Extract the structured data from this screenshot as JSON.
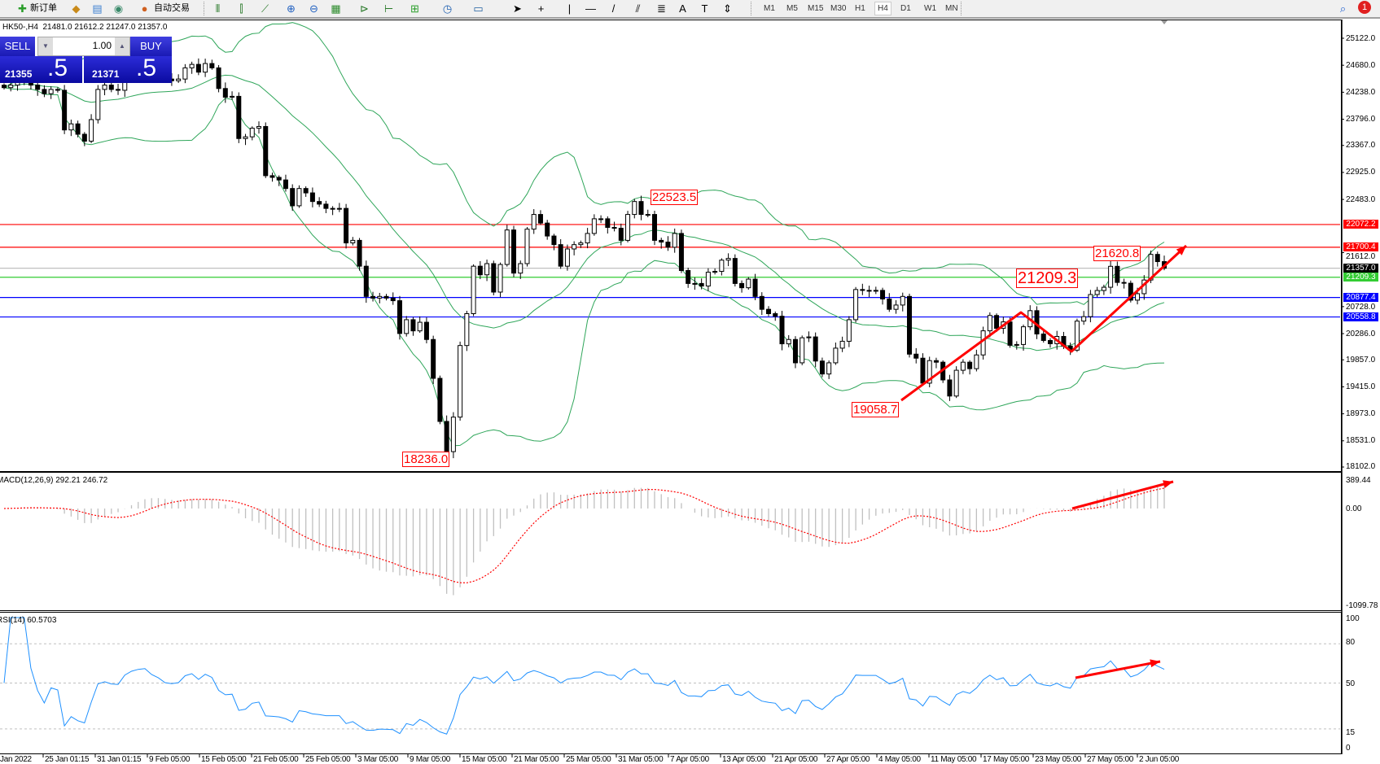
{
  "toolbar": {
    "new_order_label": "新订单",
    "auto_trading_label": "自动交易",
    "timeframes": [
      "M1",
      "M5",
      "M15",
      "M30",
      "H1",
      "H4",
      "D1",
      "W1",
      "MN"
    ],
    "active_timeframe": "H4",
    "notification_count": "1",
    "icons": [
      "new-order-icon",
      "market-watch-icon",
      "navigator-icon",
      "signals-icon",
      "auto-trading-icon",
      "bar-chart-icon",
      "candlestick-icon",
      "line-chart-icon",
      "zoom-in-icon",
      "zoom-out-icon",
      "tile-windows-icon",
      "auto-scroll-icon",
      "chart-shift-icon",
      "indicators-icon",
      "periods-icon",
      "templates-icon",
      "cursor-icon",
      "crosshair-icon",
      "vertical-line-icon",
      "horizontal-line-icon",
      "trendline-icon",
      "equidistant-channel-icon",
      "fibonacci-icon",
      "text-icon",
      "text-label-icon",
      "arrows-icon",
      "search-icon",
      "notification-icon"
    ]
  },
  "chart": {
    "symbol_info": "HK50-,H4",
    "ohlc": "21481.0 21612.2 21247.0 21357.0",
    "colors": {
      "bands": "#2fa65a",
      "macd_signal": "#ff0000",
      "macd_hist": "#c0c0c0",
      "rsi": "#1e90ff",
      "arrow": "#ff0000"
    }
  },
  "trade_panel": {
    "sell_label": "SELL",
    "buy_label": "BUY",
    "lot_size": "1.00",
    "sell_price_main": "21355",
    "sell_price_frac": ".5",
    "buy_price_main": "21371",
    "buy_price_frac": ".5"
  },
  "price_axis": [
    "25122.0",
    "24680.0",
    "24238.0",
    "23796.0",
    "23367.0",
    "22925.0",
    "22483.0",
    "21612.0",
    "20728.0",
    "20286.0",
    "19857.0",
    "19415.0",
    "18973.0",
    "18531.0",
    "18102.0"
  ],
  "price_lines": [
    {
      "value": "22072.2",
      "color": "#ff0000"
    },
    {
      "value": "21700.4",
      "color": "#ff0000"
    },
    {
      "value": "21357.0",
      "color": "#000000"
    },
    {
      "value": "21209.3",
      "color": "#33cc33"
    },
    {
      "value": "20877.4",
      "color": "#0000ff"
    },
    {
      "value": "20558.8",
      "color": "#0000ff"
    }
  ],
  "callouts": [
    "22523.5",
    "18236.0",
    "19058.7",
    "21209.3",
    "21620.8"
  ],
  "macd": {
    "label": "MACD(12,26,9) 292.21 246.72",
    "axis": [
      "389.44",
      "0.00",
      "-1099.78"
    ]
  },
  "rsi": {
    "label": "RSI(14) 60.5703",
    "axis": [
      "100",
      "80",
      "50",
      "15",
      "0"
    ]
  },
  "time_axis": [
    "Jan 2022",
    "25 Jan 01:15",
    "31 Jan 01:15",
    "9 Feb 05:00",
    "15 Feb 05:00",
    "21 Feb 05:00",
    "25 Feb 05:00",
    "3 Mar 05:00",
    "9 Mar 05:00",
    "15 Mar 05:00",
    "21 Mar 05:00",
    "25 Mar 05:00",
    "31 Mar 05:00",
    "7 Apr 05:00",
    "13 Apr 05:00",
    "21 Apr 05:00",
    "27 Apr 05:00",
    "4 May 05:00",
    "11 May 05:00",
    "17 May 05:00",
    "23 May 05:00",
    "27 May 05:00",
    "2 Jun 05:00"
  ],
  "chart_data": {
    "type": "candlestick",
    "ylim": [
      18102,
      25122
    ],
    "closes": [
      24313,
      24355,
      24397,
      24426,
      24355,
      24284,
      24214,
      24284,
      24270,
      23621,
      23720,
      23550,
      23437,
      23790,
      24284,
      24355,
      24284,
      24270,
      24567,
      24708,
      24779,
      24807,
      24666,
      24581,
      24454,
      24426,
      24454,
      24637,
      24694,
      24567,
      24708,
      24637,
      24299,
      24157,
      24171,
      23480,
      23508,
      23649,
      23677,
      22872,
      22844,
      22802,
      22662,
      22379,
      22662,
      22590,
      22449,
      22406,
      22336,
      22336,
      22336,
      21771,
      21813,
      21390,
      20895,
      20867,
      20895,
      20867,
      20825,
      20288,
      20514,
      20331,
      20472,
      20190,
      19554,
      18848,
      18354,
      18919,
      20091,
      20613,
      21390,
      21249,
      21432,
      20966,
      21418,
      21983,
      21277,
      21432,
      21997,
      22237,
      22096,
      21884,
      21743,
      21390,
      21672,
      21743,
      21771,
      21926,
      22166,
      22166,
      22025,
      22011,
      21813,
      22237,
      22449,
      22237,
      22237,
      21813,
      21785,
      21700,
      21926,
      21319,
      21107,
      21107,
      21065,
      21291,
      21305,
      21489,
      21517,
      21107,
      21037,
      21178,
      20895,
      20684,
      20613,
      20571,
      20119,
      20190,
      19808,
      20218,
      20232,
      19837,
      19625,
      19808,
      20048,
      20161,
      20514,
      21008,
      20994,
      20994,
      20994,
      20853,
      20684,
      20754,
      20895,
      19950,
      19884,
      19475,
      19844,
      19818,
      19528,
      19264,
      19686,
      19818,
      19712,
      19937,
      20332,
      20583,
      20372,
      20478,
      20095,
      20108,
      20398,
      20662,
      20280,
      20174,
      20121,
      20240,
      20082,
      20016,
      20491,
      20564,
      20926,
      20992,
      21045,
      21388,
      21124,
      21111,
      20834,
      20940,
      21164,
      21583,
      21465,
      21357
    ],
    "indicators": [
      "Bollinger Bands(20,2)",
      "MACD(12,26,9)",
      "RSI(14)"
    ],
    "macd_ylim": [
      -1099.78,
      389.44
    ],
    "rsi_levels": [
      80,
      50,
      15
    ]
  }
}
